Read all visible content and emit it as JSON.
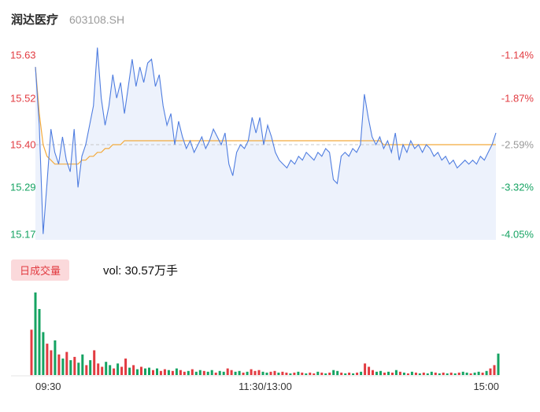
{
  "header": {
    "stock_name": "润达医疗",
    "stock_code": "603108.SH"
  },
  "volume_panel": {
    "tab_label": "日成交量",
    "value_text": "vol: 30.57万手",
    "volume": "30.57万手"
  },
  "colors": {
    "up": "#e23b41",
    "down": "#15a362",
    "neutral": "#999999",
    "price_line": "#4f7de0",
    "price_fill": "rgba(79,125,224,0.10)",
    "avg_line": "#f3aa3c",
    "midline": "#c8c8c8",
    "badge_bg": "#fbd9db"
  },
  "chart_data": [
    {
      "type": "line",
      "title": "分时走势",
      "x_labels": [
        "09:30",
        "11:30/13:00",
        "15:00"
      ],
      "ylim": [
        15.155,
        15.655
      ],
      "midline_value": 15.4,
      "grid": "midline-dashed-only",
      "legend": "none",
      "y_axis_left": [
        {
          "text": "15.63",
          "value": 15.63,
          "color": "#e23b41"
        },
        {
          "text": "15.52",
          "value": 15.52,
          "color": "#e23b41"
        },
        {
          "text": "15.40",
          "value": 15.4,
          "color": "#e23b41"
        },
        {
          "text": "15.29",
          "value": 15.29,
          "color": "#15a362"
        },
        {
          "text": "15.17",
          "value": 15.17,
          "color": "#15a362"
        }
      ],
      "y_axis_right": [
        {
          "text": "-1.14%",
          "value": 15.63,
          "color": "#e23b41"
        },
        {
          "text": "-1.87%",
          "value": 15.52,
          "color": "#e23b41"
        },
        {
          "text": "-2.59%",
          "value": 15.4,
          "color": "#999999"
        },
        {
          "text": "-3.32%",
          "value": 15.29,
          "color": "#15a362"
        },
        {
          "text": "-4.05%",
          "value": 15.17,
          "color": "#15a362"
        }
      ],
      "series": [
        {
          "name": "price",
          "color": "#4f7de0",
          "fill": "rgba(79,125,224,0.10)",
          "values": [
            15.6,
            15.45,
            15.17,
            15.3,
            15.44,
            15.38,
            15.35,
            15.42,
            15.36,
            15.33,
            15.44,
            15.29,
            15.37,
            15.4,
            15.45,
            15.5,
            15.65,
            15.52,
            15.45,
            15.5,
            15.58,
            15.52,
            15.56,
            15.48,
            15.55,
            15.62,
            15.55,
            15.6,
            15.56,
            15.61,
            15.62,
            15.55,
            15.58,
            15.5,
            15.45,
            15.48,
            15.4,
            15.46,
            15.42,
            15.39,
            15.41,
            15.38,
            15.4,
            15.42,
            15.39,
            15.41,
            15.44,
            15.42,
            15.4,
            15.43,
            15.35,
            15.32,
            15.38,
            15.4,
            15.39,
            15.41,
            15.47,
            15.43,
            15.47,
            15.4,
            15.45,
            15.42,
            15.38,
            15.36,
            15.35,
            15.34,
            15.36,
            15.35,
            15.37,
            15.36,
            15.38,
            15.37,
            15.36,
            15.38,
            15.37,
            15.39,
            15.38,
            15.31,
            15.3,
            15.37,
            15.38,
            15.37,
            15.39,
            15.38,
            15.4,
            15.53,
            15.47,
            15.42,
            15.4,
            15.42,
            15.39,
            15.41,
            15.38,
            15.43,
            15.36,
            15.4,
            15.38,
            15.41,
            15.39,
            15.4,
            15.38,
            15.4,
            15.39,
            15.37,
            15.38,
            15.36,
            15.37,
            15.35,
            15.36,
            15.34,
            15.35,
            15.36,
            15.35,
            15.36,
            15.35,
            15.37,
            15.36,
            15.38,
            15.4,
            15.43
          ]
        },
        {
          "name": "avg",
          "color": "#f3aa3c",
          "values": [
            15.6,
            15.48,
            15.4,
            15.37,
            15.36,
            15.35,
            15.35,
            15.35,
            15.35,
            15.35,
            15.35,
            15.35,
            15.36,
            15.36,
            15.37,
            15.37,
            15.38,
            15.38,
            15.39,
            15.39,
            15.4,
            15.4,
            15.4,
            15.41,
            15.41,
            15.41,
            15.41,
            15.41,
            15.41,
            15.41,
            15.41,
            15.41,
            15.41,
            15.41,
            15.41,
            15.41,
            15.41,
            15.41,
            15.41,
            15.41,
            15.41,
            15.41,
            15.41,
            15.41,
            15.41,
            15.41,
            15.41,
            15.41,
            15.41,
            15.41,
            15.41,
            15.41,
            15.41,
            15.41,
            15.41,
            15.41,
            15.41,
            15.41,
            15.41,
            15.41,
            15.41,
            15.41,
            15.41,
            15.41,
            15.41,
            15.41,
            15.41,
            15.41,
            15.41,
            15.41,
            15.41,
            15.41,
            15.41,
            15.41,
            15.41,
            15.41,
            15.41,
            15.41,
            15.41,
            15.41,
            15.41,
            15.41,
            15.41,
            15.41,
            15.41,
            15.41,
            15.41,
            15.41,
            15.41,
            15.41,
            15.4,
            15.4,
            15.4,
            15.4,
            15.4,
            15.4,
            15.4,
            15.4,
            15.4,
            15.4,
            15.4,
            15.4,
            15.4,
            15.4,
            15.4,
            15.4,
            15.4,
            15.4,
            15.4,
            15.4,
            15.4,
            15.4,
            15.4,
            15.4,
            15.4,
            15.4,
            15.4,
            15.4,
            15.4,
            15.4
          ]
        }
      ]
    },
    {
      "type": "bar",
      "title": "日成交量",
      "scale_max": 100,
      "up_color": "#e23b41",
      "down_color": "#15a362",
      "values": [
        55,
        100,
        80,
        52,
        38,
        30,
        42,
        25,
        20,
        28,
        18,
        22,
        15,
        25,
        12,
        18,
        30,
        14,
        10,
        16,
        12,
        8,
        14,
        10,
        20,
        9,
        12,
        7,
        10,
        8,
        9,
        6,
        8,
        5,
        7,
        6,
        5,
        8,
        6,
        4,
        5,
        7,
        4,
        6,
        5,
        4,
        6,
        3,
        5,
        4,
        8,
        6,
        4,
        5,
        3,
        4,
        7,
        5,
        6,
        4,
        3,
        4,
        5,
        3,
        4,
        3,
        2,
        3,
        4,
        3,
        2,
        3,
        2,
        4,
        3,
        2,
        3,
        6,
        5,
        3,
        2,
        3,
        2,
        3,
        4,
        14,
        10,
        6,
        4,
        5,
        3,
        4,
        3,
        6,
        4,
        3,
        2,
        4,
        3,
        2,
        3,
        2,
        4,
        3,
        2,
        3,
        2,
        3,
        2,
        3,
        4,
        3,
        2,
        3,
        4,
        3,
        5,
        8,
        12,
        26
      ],
      "updown": [
        "u",
        "d",
        "d",
        "d",
        "u",
        "u",
        "d",
        "u",
        "d",
        "u",
        "d",
        "u",
        "d",
        "d",
        "u",
        "d",
        "u",
        "u",
        "u",
        "d",
        "d",
        "u",
        "d",
        "u",
        "u",
        "d",
        "u",
        "d",
        "u",
        "d",
        "d",
        "u",
        "d",
        "u",
        "u",
        "d",
        "u",
        "d",
        "u",
        "u",
        "d",
        "u",
        "d",
        "d",
        "u",
        "d",
        "d",
        "u",
        "d",
        "d",
        "u",
        "u",
        "d",
        "d",
        "u",
        "d",
        "u",
        "u",
        "u",
        "d",
        "d",
        "u",
        "u",
        "d",
        "u",
        "u",
        "d",
        "u",
        "d",
        "u",
        "d",
        "u",
        "u",
        "d",
        "u",
        "d",
        "u",
        "d",
        "d",
        "u",
        "d",
        "u",
        "d",
        "u",
        "d",
        "u",
        "u",
        "u",
        "d",
        "d",
        "u",
        "d",
        "u",
        "d",
        "u",
        "d",
        "u",
        "d",
        "u",
        "d",
        "u",
        "d",
        "d",
        "u",
        "d",
        "u",
        "d",
        "u",
        "d",
        "u",
        "d",
        "d",
        "u",
        "d",
        "d",
        "u",
        "d",
        "u",
        "u",
        "d"
      ]
    }
  ]
}
